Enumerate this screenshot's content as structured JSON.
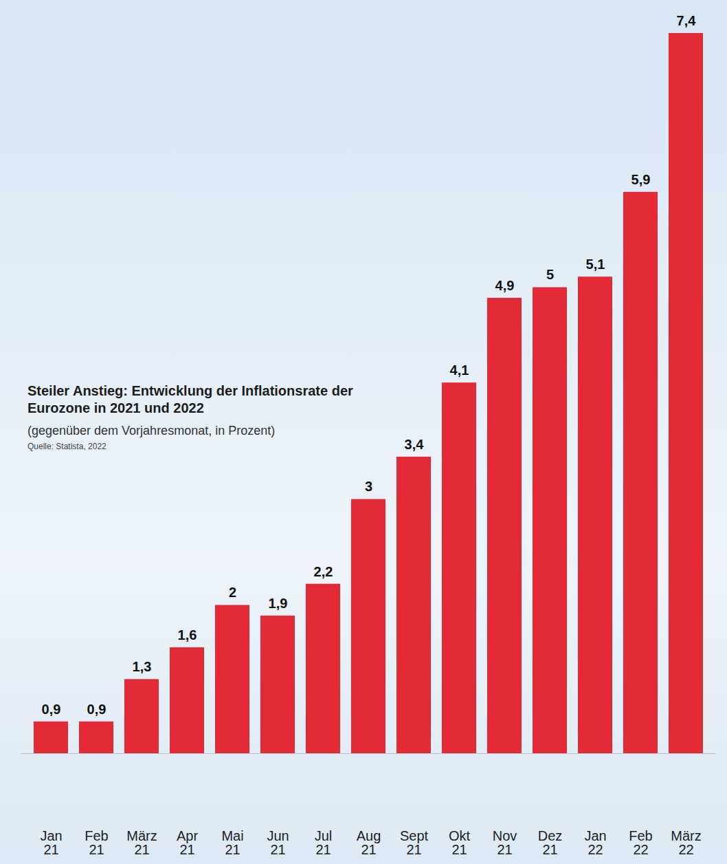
{
  "chart_data": {
    "type": "bar",
    "title": "Steiler Anstieg: Entwicklung der Inflationsrate der Eurozone in 2021 und 2022",
    "subtitle": "(gegenüber dem Vorjahresmonat, in Prozent)",
    "caption": "Quelle: Statista, 2022",
    "categories": [
      "Jan 21",
      "Feb 21",
      "März 21",
      "Apr 21",
      "Mai 21",
      "Jun 21",
      "Jul 21",
      "Aug 21",
      "Sept 21",
      "Okt 21",
      "Nov 21",
      "Dez 21",
      "Jan 22",
      "Feb 22",
      "März 22"
    ],
    "values": [
      0.9,
      0.9,
      1.3,
      1.6,
      2,
      1.9,
      2.2,
      3,
      3.4,
      4.1,
      4.9,
      5,
      5.1,
      5.9,
      7.4
    ],
    "value_labels": [
      "0,9",
      "0,9",
      "1,3",
      "1,6",
      "2",
      "1,9",
      "2,2",
      "3",
      "3,4",
      "4,1",
      "4,9",
      "5",
      "5,1",
      "5,9",
      "7,4"
    ],
    "color": "#e52a37",
    "ylim": [
      0.6,
      7.4
    ],
    "yticks": [],
    "grid": false,
    "data_labels": true,
    "tick_labels": "x"
  }
}
